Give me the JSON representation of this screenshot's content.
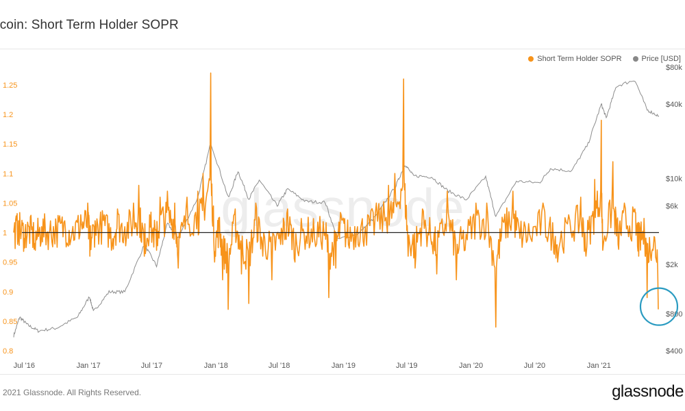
{
  "header": {
    "title": "itcoin: Short Term Holder SOPR"
  },
  "legend": [
    {
      "label": "Short Term Holder SOPR",
      "color": "#f7931a"
    },
    {
      "label": "Price [USD]",
      "color": "#888888"
    }
  ],
  "watermark": "glassnode",
  "footer": {
    "copyright": "2021 Glassnode. All Rights Reserved.",
    "logo": "glassnode"
  },
  "colors": {
    "sopr": "#f7931a",
    "price": "#8c8c8c",
    "baseline": "#222222",
    "highlight_circle": "#2a9bc1"
  },
  "chart_data": {
    "type": "line",
    "title": "itcoin: Short Term Holder SOPR",
    "x_ticks": [
      "Jul '16",
      "Jan '17",
      "Jul '17",
      "Jan '18",
      "Jul '18",
      "Jan '19",
      "Jul '19",
      "Jan '20",
      "Jul '20",
      "Jan '21"
    ],
    "x_range": [
      "2016-06-01",
      "2021-06-22"
    ],
    "left_axis": {
      "ticks": [
        "1.25",
        "1.2",
        "1.15",
        "1.1",
        "1.05",
        "1",
        "0.95",
        "0.9",
        "0.85",
        "0.8"
      ],
      "ylim": [
        0.8,
        1.28
      ]
    },
    "right_axis": {
      "scale": "log",
      "ticks": [
        "$80k",
        "$40k",
        "$10k",
        "$6k",
        "$2k",
        "$800",
        "$400"
      ],
      "ylim": [
        400,
        80000
      ]
    },
    "baseline": 1,
    "grid": false,
    "legend_position": "top-right",
    "series": [
      {
        "name": "Short Term Holder SOPR",
        "axis": "left",
        "points": [
          [
            "2016-06-01",
            1.0
          ],
          [
            "2016-06-15",
            1.02
          ],
          [
            "2016-07-01",
            0.99
          ],
          [
            "2016-07-15",
            1.01
          ],
          [
            "2016-08-02",
            0.97
          ],
          [
            "2016-08-20",
            1.01
          ],
          [
            "2016-09-10",
            1.0
          ],
          [
            "2016-10-01",
            1.01
          ],
          [
            "2016-10-25",
            1.02
          ],
          [
            "2016-11-15",
            1.0
          ],
          [
            "2016-12-10",
            1.03
          ],
          [
            "2016-12-30",
            1.05
          ],
          [
            "2017-01-05",
            0.96
          ],
          [
            "2017-01-20",
            1.02
          ],
          [
            "2017-02-15",
            1.03
          ],
          [
            "2017-03-10",
            0.98
          ],
          [
            "2017-03-25",
            1.04
          ],
          [
            "2017-04-15",
            1.01
          ],
          [
            "2017-05-10",
            1.05
          ],
          [
            "2017-05-25",
            1.08
          ],
          [
            "2017-06-10",
            0.96
          ],
          [
            "2017-06-25",
            1.03
          ],
          [
            "2017-07-15",
            0.97
          ],
          [
            "2017-07-25",
            1.06
          ],
          [
            "2017-08-15",
            1.07
          ],
          [
            "2017-09-05",
            1.05
          ],
          [
            "2017-09-15",
            0.94
          ],
          [
            "2017-10-10",
            1.06
          ],
          [
            "2017-11-10",
            1.07
          ],
          [
            "2017-11-25",
            1.1
          ],
          [
            "2017-12-17",
            1.27
          ],
          [
            "2017-12-28",
            0.95
          ],
          [
            "2018-01-10",
            1.02
          ],
          [
            "2018-01-20",
            0.92
          ],
          [
            "2018-02-05",
            0.87
          ],
          [
            "2018-02-25",
            1.04
          ],
          [
            "2018-03-15",
            0.93
          ],
          [
            "2018-04-05",
            0.88
          ],
          [
            "2018-04-25",
            1.05
          ],
          [
            "2018-05-15",
            0.96
          ],
          [
            "2018-06-10",
            0.92
          ],
          [
            "2018-07-05",
            0.98
          ],
          [
            "2018-07-25",
            1.04
          ],
          [
            "2018-08-15",
            0.95
          ],
          [
            "2018-09-10",
            1.0
          ],
          [
            "2018-10-10",
            0.99
          ],
          [
            "2018-11-10",
            1.0
          ],
          [
            "2018-11-20",
            0.89
          ],
          [
            "2018-12-10",
            0.94
          ],
          [
            "2018-12-25",
            1.03
          ],
          [
            "2019-01-15",
            0.98
          ],
          [
            "2019-02-10",
            1.01
          ],
          [
            "2019-03-05",
            1.01
          ],
          [
            "2019-04-05",
            1.05
          ],
          [
            "2019-05-10",
            1.08
          ],
          [
            "2019-05-28",
            1.1
          ],
          [
            "2019-06-22",
            1.26
          ],
          [
            "2019-07-05",
            0.96
          ],
          [
            "2019-07-25",
            0.94
          ],
          [
            "2019-08-15",
            1.04
          ],
          [
            "2019-09-10",
            0.98
          ],
          [
            "2019-09-25",
            0.93
          ],
          [
            "2019-10-25",
            1.07
          ],
          [
            "2019-11-20",
            0.92
          ],
          [
            "2019-12-15",
            0.97
          ],
          [
            "2020-01-15",
            1.05
          ],
          [
            "2020-02-15",
            1.05
          ],
          [
            "2020-03-12",
            0.84
          ],
          [
            "2020-04-01",
            1.02
          ],
          [
            "2020-04-30",
            1.07
          ],
          [
            "2020-05-20",
            0.99
          ],
          [
            "2020-06-20",
            0.99
          ],
          [
            "2020-07-25",
            1.05
          ],
          [
            "2020-08-20",
            0.99
          ],
          [
            "2020-09-05",
            0.95
          ],
          [
            "2020-10-10",
            1.02
          ],
          [
            "2020-11-10",
            1.06
          ],
          [
            "2020-11-25",
            0.96
          ],
          [
            "2020-12-20",
            1.09
          ],
          [
            "2021-01-08",
            1.19
          ],
          [
            "2021-01-12",
            0.97
          ],
          [
            "2021-02-10",
            1.12
          ],
          [
            "2021-02-25",
            0.98
          ],
          [
            "2021-03-15",
            1.05
          ],
          [
            "2021-04-14",
            1.04
          ],
          [
            "2021-04-25",
            0.96
          ],
          [
            "2021-05-12",
            0.99
          ],
          [
            "2021-05-19",
            0.89
          ],
          [
            "2021-06-05",
            0.97
          ],
          [
            "2021-06-20",
            0.87
          ]
        ]
      },
      {
        "name": "Price [USD]",
        "axis": "right",
        "points": [
          [
            "2016-06-01",
            530
          ],
          [
            "2016-06-18",
            750
          ],
          [
            "2016-07-10",
            650
          ],
          [
            "2016-08-10",
            580
          ],
          [
            "2016-10-01",
            610
          ],
          [
            "2016-12-01",
            750
          ],
          [
            "2017-01-04",
            1100
          ],
          [
            "2017-01-15",
            830
          ],
          [
            "2017-03-01",
            1200
          ],
          [
            "2017-04-15",
            1200
          ],
          [
            "2017-06-10",
            2900
          ],
          [
            "2017-07-15",
            1950
          ],
          [
            "2017-08-15",
            4300
          ],
          [
            "2017-09-15",
            3300
          ],
          [
            "2017-11-10",
            7000
          ],
          [
            "2017-12-17",
            19500
          ],
          [
            "2018-02-06",
            6900
          ],
          [
            "2018-03-05",
            11500
          ],
          [
            "2018-04-05",
            6800
          ],
          [
            "2018-05-05",
            9700
          ],
          [
            "2018-06-25",
            6000
          ],
          [
            "2018-07-25",
            8200
          ],
          [
            "2018-09-15",
            6500
          ],
          [
            "2018-11-10",
            6400
          ],
          [
            "2018-12-15",
            3200
          ],
          [
            "2019-02-15",
            3600
          ],
          [
            "2019-04-05",
            5000
          ],
          [
            "2019-05-30",
            8600
          ],
          [
            "2019-06-26",
            13000
          ],
          [
            "2019-07-20",
            10500
          ],
          [
            "2019-09-10",
            10300
          ],
          [
            "2019-10-25",
            8000
          ],
          [
            "2019-12-18",
            6700
          ],
          [
            "2020-02-12",
            10300
          ],
          [
            "2020-03-12",
            4900
          ],
          [
            "2020-05-10",
            9500
          ],
          [
            "2020-07-15",
            9200
          ],
          [
            "2020-08-15",
            12000
          ],
          [
            "2020-10-15",
            11500
          ],
          [
            "2020-12-01",
            19000
          ],
          [
            "2021-01-08",
            40000
          ],
          [
            "2021-01-22",
            31000
          ],
          [
            "2021-02-20",
            56000
          ],
          [
            "2021-04-14",
            63000
          ],
          [
            "2021-05-19",
            36000
          ],
          [
            "2021-06-22",
            32000
          ]
        ]
      }
    ]
  }
}
